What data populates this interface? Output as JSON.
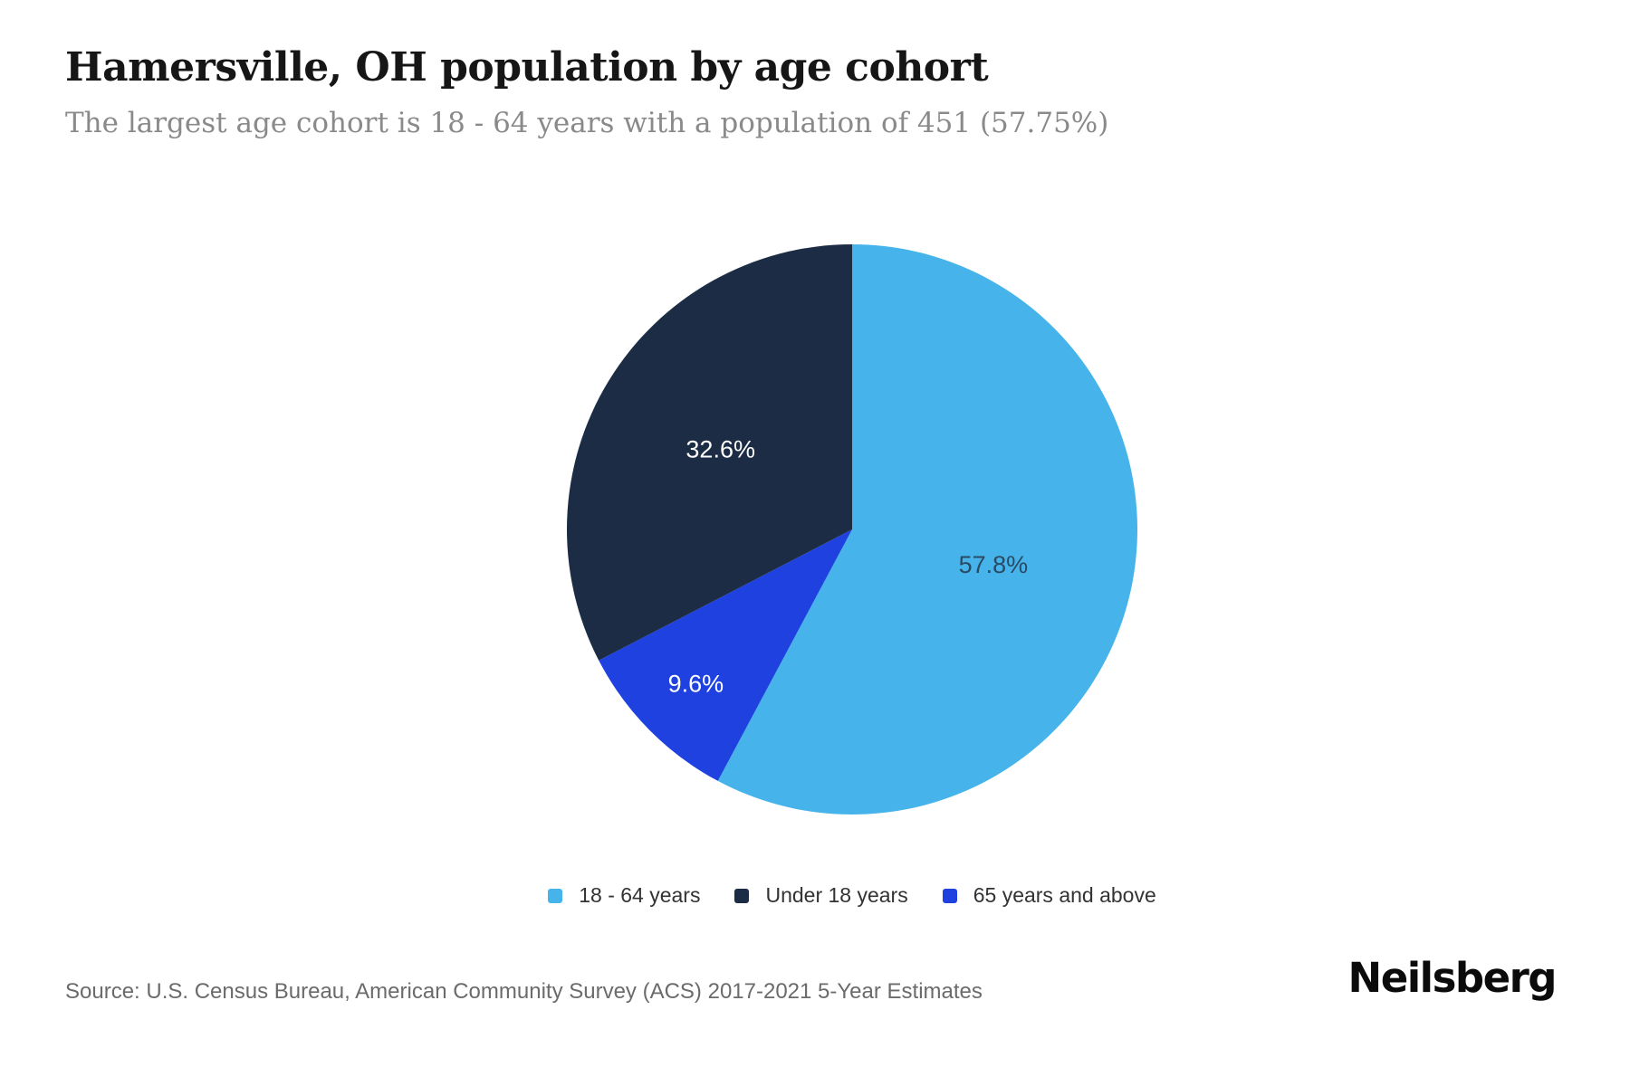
{
  "page": {
    "title": "Hamersville, OH population by age cohort",
    "subtitle": "The largest age cohort is 18 - 64 years with a population of 451 (57.75%)",
    "source_note": "Source: U.S. Census Bureau, American Community Survey (ACS) 2017-2021 5-Year Estimates",
    "brand": "Neilsberg",
    "background_color": "#ffffff"
  },
  "chart_data": {
    "type": "pie",
    "title": "Hamersville, OH population by age cohort",
    "unit": "percent of population",
    "start_angle_deg": 0,
    "direction": "clockwise",
    "legend_position": "bottom-center",
    "slices": [
      {
        "name": "18 - 64 years",
        "value": 57.8,
        "display_label": "57.8%",
        "color": "#46b4ea",
        "label_color": "#2a4a63",
        "label_radius_frac": 0.51
      },
      {
        "name": "65 years and above",
        "value": 9.6,
        "display_label": "9.6%",
        "color": "#1e41e0",
        "label_color": "#ffffff",
        "label_radius_frac": 0.77
      },
      {
        "name": "Under 18 years",
        "value": 32.6,
        "display_label": "32.6%",
        "color": "#1b2c44",
        "label_color": "#ffffff",
        "label_radius_frac": 0.54
      }
    ],
    "legend": [
      {
        "label": "18 - 64 years",
        "color": "#46b4ea"
      },
      {
        "label": "Under 18 years",
        "color": "#1b2c44"
      },
      {
        "label": "65 years and above",
        "color": "#1e41e0"
      }
    ]
  }
}
